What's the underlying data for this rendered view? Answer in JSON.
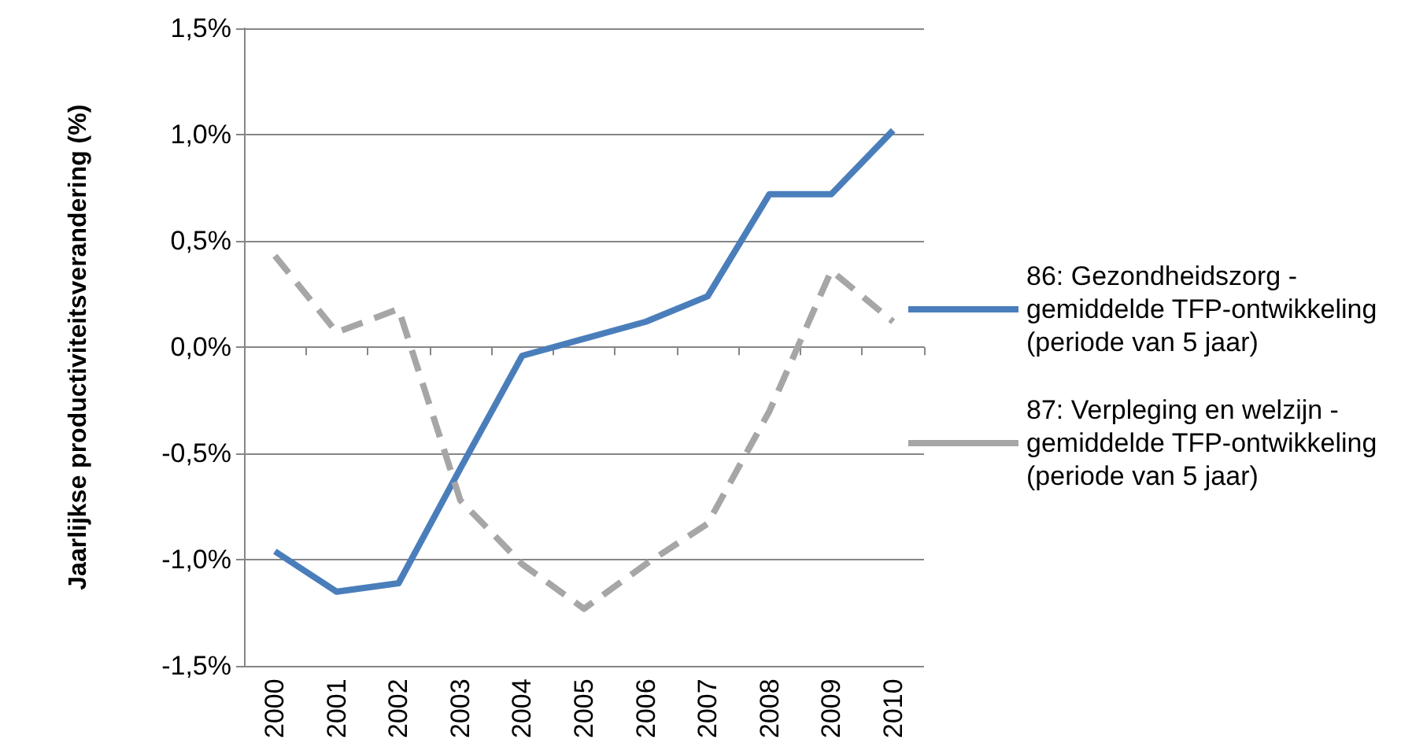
{
  "chart_data": {
    "type": "line",
    "ylabel": "Jaarlijkse productiviteitsverandering (%)",
    "categories": [
      "2000",
      "2001",
      "2002",
      "2003",
      "2004",
      "2005",
      "2006",
      "2007",
      "2008",
      "2009",
      "2010"
    ],
    "series": [
      {
        "name": "86: Gezondheidszorg - gemiddelde TFP-ontwikkeling (periode van 5 jaar)",
        "color": "#4a7ebb",
        "line_style": "solid",
        "values": [
          -0.96,
          -1.15,
          -1.11,
          -0.57,
          -0.04,
          0.04,
          0.12,
          0.24,
          0.72,
          0.72,
          1.02
        ]
      },
      {
        "name": "87: Verpleging en welzijn - gemiddelde TFP-ontwikkeling (periode van 5 jaar)",
        "color": "#a6a6a6",
        "line_style": "dashed",
        "values": [
          0.43,
          0.07,
          0.18,
          -0.72,
          -1.02,
          -1.23,
          -1.02,
          -0.83,
          -0.3,
          0.36,
          0.12
        ]
      }
    ],
    "ylim": [
      -1.5,
      1.5
    ],
    "yticks": [
      {
        "value": -1.5,
        "label": "-1,5%"
      },
      {
        "value": -1.0,
        "label": "-1,0%"
      },
      {
        "value": -0.5,
        "label": "-0,5%"
      },
      {
        "value": 0,
        "label": "0,0%"
      },
      {
        "value": 0.5,
        "label": "0,5%"
      },
      {
        "value": 1.0,
        "label": "1,0%"
      },
      {
        "value": 1.5,
        "label": "1,5%"
      }
    ],
    "grid": "y",
    "legend": "right",
    "marker": "none"
  }
}
